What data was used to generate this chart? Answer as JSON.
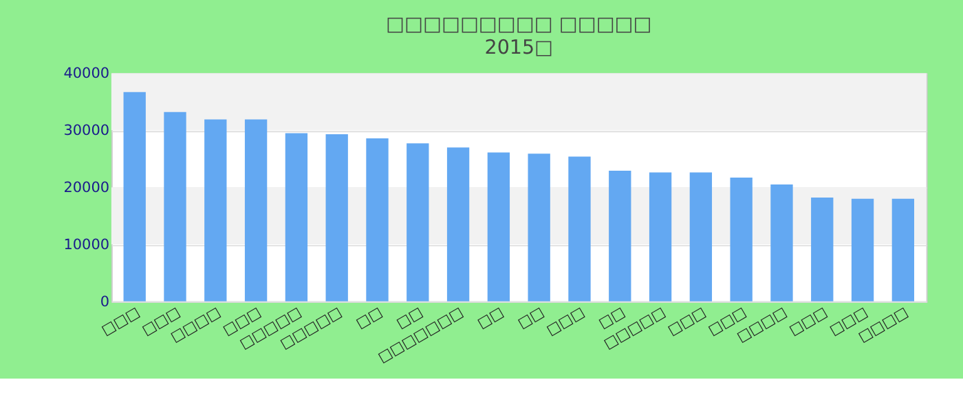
{
  "chart_data": {
    "type": "bar",
    "title": "□□□□□□□□□ □□□□□",
    "subtitle": "2015□",
    "categories": [
      "□□□",
      "□□□",
      "□□□□",
      "□□□",
      "□□□□□",
      "□□□□□",
      "□□",
      "□□",
      "□□□□□□□",
      "□□",
      "□□",
      "□□□",
      "□□",
      "□□□□□",
      "□□□",
      "□□□",
      "□□□□",
      "□□□",
      "□□□",
      "□□□□"
    ],
    "values": [
      36700,
      33200,
      31900,
      31900,
      29500,
      29300,
      28600,
      27700,
      27000,
      26100,
      25900,
      25400,
      22900,
      22600,
      22600,
      21700,
      20500,
      18200,
      18000,
      18000
    ],
    "color": "#63a8f2",
    "ylim": [
      0,
      40000
    ],
    "yticks": [
      0,
      10000,
      20000,
      30000,
      40000
    ],
    "grid": "y"
  }
}
